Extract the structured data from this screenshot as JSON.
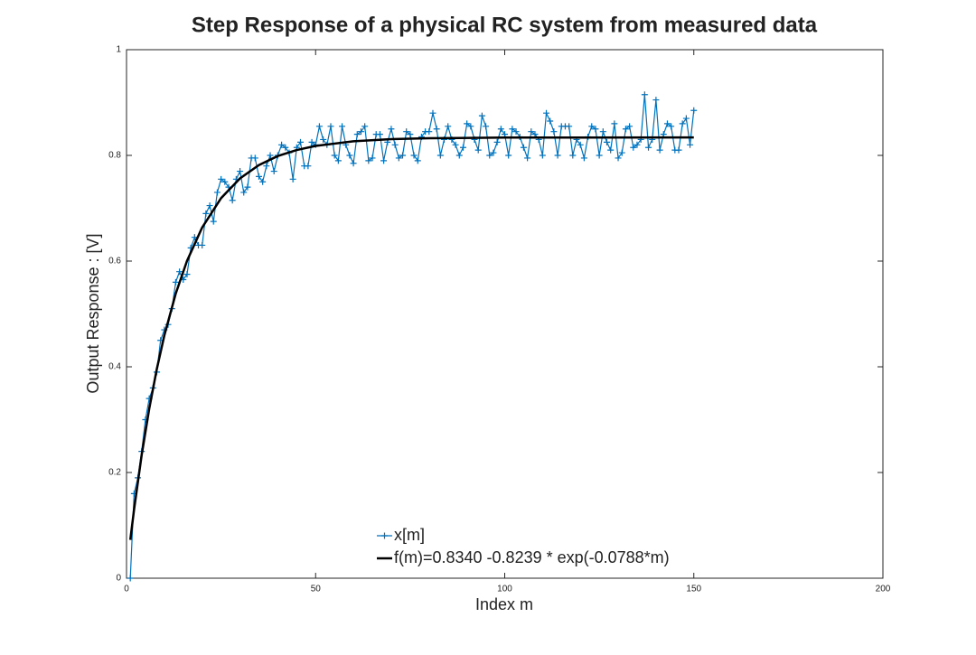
{
  "chart_data": {
    "type": "line",
    "title": "Step Response of a physical RC system from measured data",
    "xlabel": "Index m",
    "ylabel": "Output Response : [V]",
    "xlim": [
      0,
      200
    ],
    "xticks": [
      0,
      50,
      100,
      150,
      200
    ],
    "ylim": [
      0,
      1
    ],
    "yticks": [
      0,
      0.2,
      0.4,
      0.6,
      0.8,
      1
    ],
    "series": [
      {
        "name": "x[m]",
        "color": "#0072bd",
        "marker": "+",
        "x": [
          1,
          2,
          3,
          4,
          5,
          6,
          7,
          8,
          9,
          10,
          11,
          12,
          13,
          14,
          15,
          16,
          17,
          18,
          19,
          20,
          21,
          22,
          23,
          24,
          25,
          26,
          27,
          28,
          29,
          30,
          31,
          32,
          33,
          34,
          35,
          36,
          37,
          38,
          39,
          40,
          41,
          42,
          43,
          44,
          45,
          46,
          47,
          48,
          49,
          50,
          51,
          52,
          53,
          54,
          55,
          56,
          57,
          58,
          59,
          60,
          61,
          62,
          63,
          64,
          65,
          66,
          67,
          68,
          69,
          70,
          71,
          72,
          73,
          74,
          75,
          76,
          77,
          78,
          79,
          80,
          81,
          82,
          83,
          84,
          85,
          86,
          87,
          88,
          89,
          90,
          91,
          92,
          93,
          94,
          95,
          96,
          97,
          98,
          99,
          100,
          101,
          102,
          103,
          104,
          105,
          106,
          107,
          108,
          109,
          110,
          111,
          112,
          113,
          114,
          115,
          116,
          117,
          118,
          119,
          120,
          121,
          122,
          123,
          124,
          125,
          126,
          127,
          128,
          129,
          130,
          131,
          132,
          133,
          134,
          135,
          136,
          137,
          138,
          139,
          140,
          141,
          142,
          143,
          144,
          145,
          146,
          147,
          148,
          149,
          150
        ],
        "values": [
          0,
          0.16,
          0.19,
          0.24,
          0.3,
          0.34,
          0.36,
          0.39,
          0.45,
          0.47,
          0.48,
          0.51,
          0.56,
          0.58,
          0.565,
          0.575,
          0.625,
          0.645,
          0.63,
          0.63,
          0.69,
          0.705,
          0.675,
          0.73,
          0.755,
          0.75,
          0.74,
          0.715,
          0.755,
          0.77,
          0.73,
          0.74,
          0.795,
          0.795,
          0.76,
          0.75,
          0.78,
          0.8,
          0.77,
          0.8,
          0.82,
          0.815,
          0.805,
          0.755,
          0.815,
          0.825,
          0.78,
          0.78,
          0.825,
          0.82,
          0.855,
          0.83,
          0.82,
          0.855,
          0.8,
          0.79,
          0.855,
          0.82,
          0.8,
          0.785,
          0.84,
          0.845,
          0.855,
          0.79,
          0.795,
          0.84,
          0.84,
          0.79,
          0.825,
          0.85,
          0.82,
          0.795,
          0.8,
          0.845,
          0.84,
          0.8,
          0.79,
          0.835,
          0.845,
          0.845,
          0.88,
          0.85,
          0.8,
          0.83,
          0.855,
          0.83,
          0.82,
          0.8,
          0.815,
          0.86,
          0.855,
          0.83,
          0.81,
          0.875,
          0.855,
          0.8,
          0.805,
          0.825,
          0.85,
          0.84,
          0.8,
          0.85,
          0.845,
          0.835,
          0.815,
          0.795,
          0.845,
          0.84,
          0.83,
          0.8,
          0.88,
          0.865,
          0.845,
          0.8,
          0.855,
          0.855,
          0.855,
          0.8,
          0.83,
          0.82,
          0.795,
          0.835,
          0.855,
          0.85,
          0.8,
          0.845,
          0.825,
          0.81,
          0.86,
          0.795,
          0.805,
          0.85,
          0.855,
          0.815,
          0.82,
          0.83,
          0.915,
          0.815,
          0.83,
          0.905,
          0.81,
          0.84,
          0.86,
          0.855,
          0.81,
          0.81,
          0.86,
          0.87,
          0.82,
          0.885
        ]
      },
      {
        "name": "f(m)=0.8340 -0.8239 * exp(-0.0788*m)",
        "color": "#000000",
        "x": [
          1,
          2,
          4,
          6,
          8,
          10,
          13,
          16,
          20,
          25,
          30,
          35,
          40,
          45,
          50,
          60,
          70,
          80,
          100,
          150
        ],
        "values": [
          0.0725,
          0.1302,
          0.2328,
          0.3205,
          0.3954,
          0.4593,
          0.5382,
          0.6005,
          0.6636,
          0.7191,
          0.7565,
          0.7817,
          0.7988,
          0.8102,
          0.818,
          0.8267,
          0.8307,
          0.8325,
          0.8337,
          0.834
        ]
      }
    ]
  }
}
